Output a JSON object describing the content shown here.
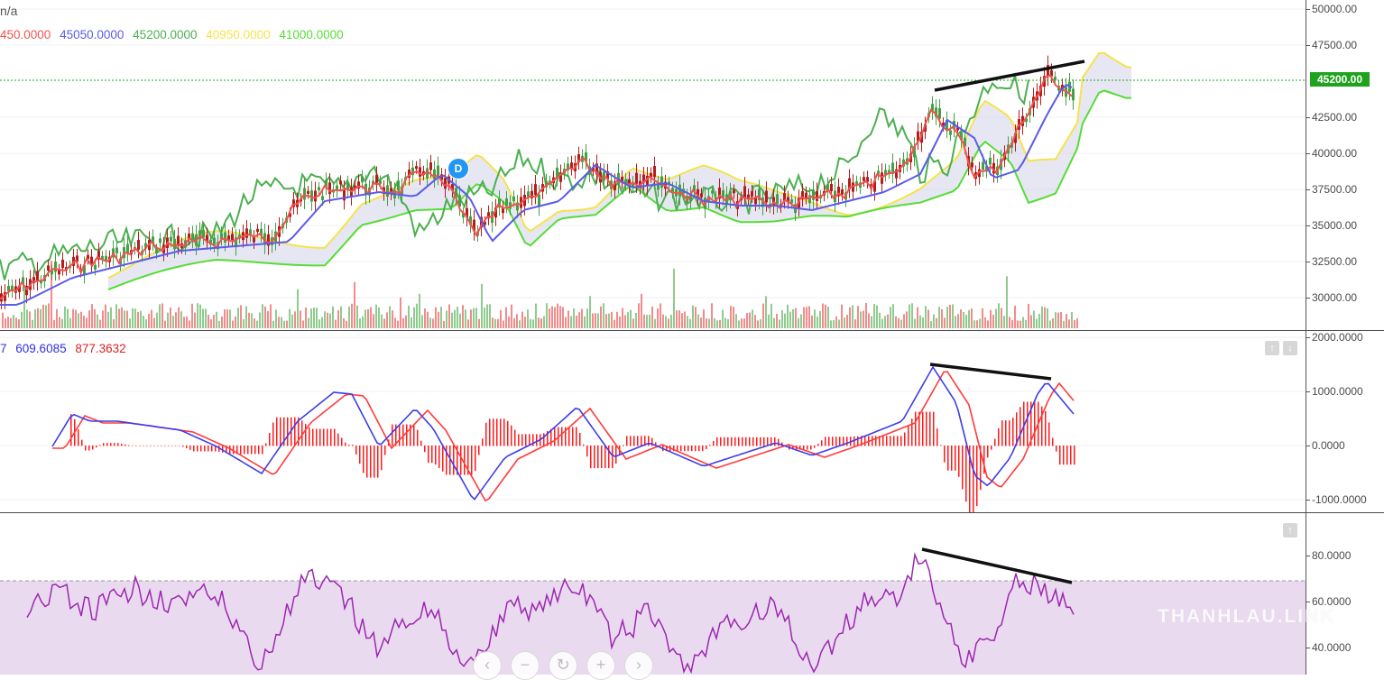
{
  "price_pane": {
    "title_fragment": "n/a",
    "legend": [
      {
        "text": "450.0000",
        "color": "#ef5350"
      },
      {
        "text": "45050.0000",
        "color": "#5b5bea"
      },
      {
        "text": "45200.0000",
        "color": "#4caf50"
      },
      {
        "text": "40950.0000",
        "color": "#f5e34c"
      },
      {
        "text": "41000.0000",
        "color": "#55dd35"
      }
    ],
    "axis_ticks": [
      "50000.00",
      "47500.00",
      "45200.00",
      "42500.00",
      "40000.00",
      "37500.00",
      "35000.00",
      "32500.00",
      "30000.00"
    ],
    "last_price": "45200.00",
    "event_badge": "D"
  },
  "macd_pane": {
    "legend": [
      {
        "text": "7",
        "color": "#3030dd"
      },
      {
        "text": "609.6085",
        "color": "#3030dd"
      },
      {
        "text": "877.3632",
        "color": "#dd2222"
      }
    ],
    "axis_ticks": [
      "2000.0000",
      "1000.0000",
      "0.0000",
      "-1000.0000"
    ],
    "buttons": [
      "↑",
      "↓"
    ]
  },
  "rsi_pane": {
    "axis_ticks": [
      "80.0000",
      "60.0000",
      "40.0000"
    ],
    "buttons": [
      "↑"
    ]
  },
  "nav": {
    "back": "‹",
    "zoom_out": "−",
    "reset": "↻",
    "zoom_in": "+",
    "forward": "›"
  },
  "watermark": "THANHLAU.LINK",
  "colors": {
    "up": "#4caf50",
    "down": "#c62828",
    "fast": "#ef5350",
    "slow": "#5b5bea",
    "lagging": "#4caf50",
    "spanA": "#f5e34c",
    "spanB": "#55dd35",
    "rsi": "#9c27b0",
    "macd": "#3d3dea",
    "signal": "#ff3b3b",
    "hist": "#ff1a1a"
  }
}
